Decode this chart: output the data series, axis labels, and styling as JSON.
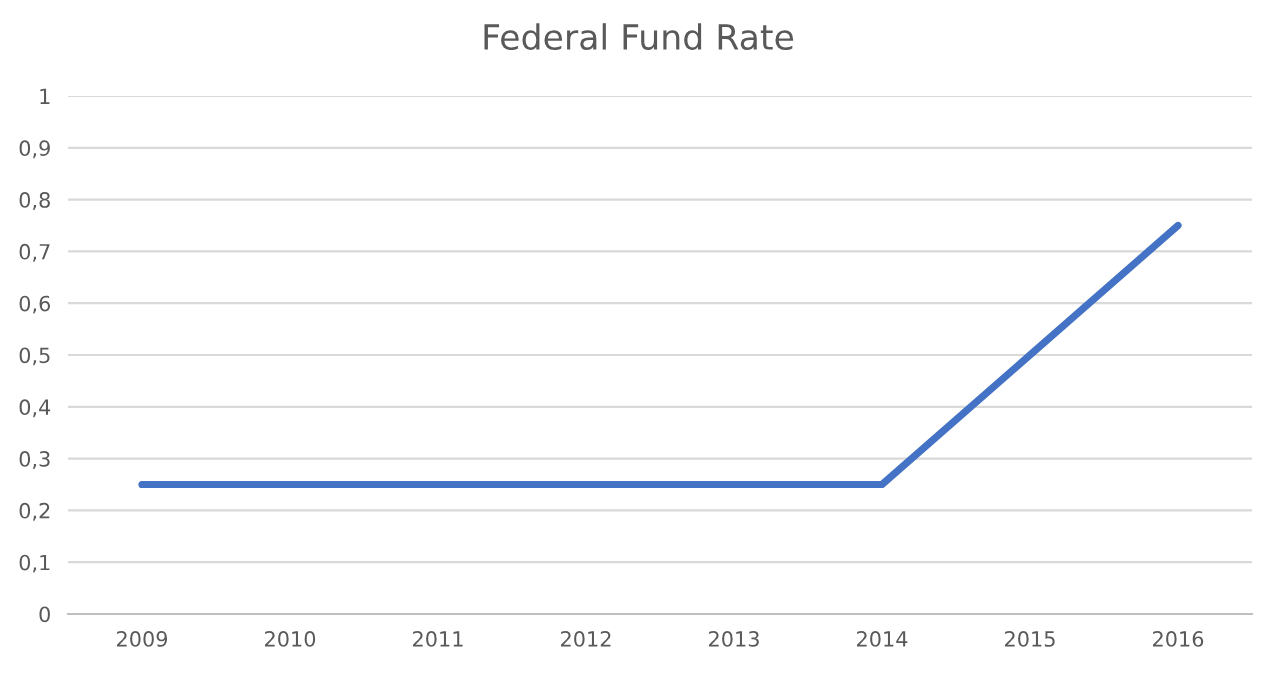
{
  "chart_data": {
    "type": "line",
    "title": "Federal Fund Rate",
    "categories": [
      "2009",
      "2010",
      "2011",
      "2012",
      "2013",
      "2014",
      "2015",
      "2016"
    ],
    "series": [
      {
        "color": "#4472c4",
        "values": [
          0.25,
          0.25,
          0.25,
          0.25,
          0.25,
          0.25,
          0.5,
          0.75
        ]
      }
    ],
    "ylim": [
      0,
      1
    ],
    "yticks": [
      0,
      {
        "value": 0.1,
        "label": "0,1"
      },
      {
        "value": 0.2,
        "label": "0,2"
      },
      {
        "value": 0.3,
        "label": "0,3"
      },
      {
        "value": 0.4,
        "label": "0,4"
      },
      {
        "value": 0.5,
        "label": "0,5"
      },
      {
        "value": 0.6,
        "label": "0,6"
      },
      {
        "value": 0.7,
        "label": "0,7"
      },
      {
        "value": 0.8,
        "label": "0,8"
      },
      {
        "value": 0.9,
        "label": "0,9"
      },
      1
    ],
    "grid": "y",
    "marker": "none",
    "line_style": "solid"
  }
}
